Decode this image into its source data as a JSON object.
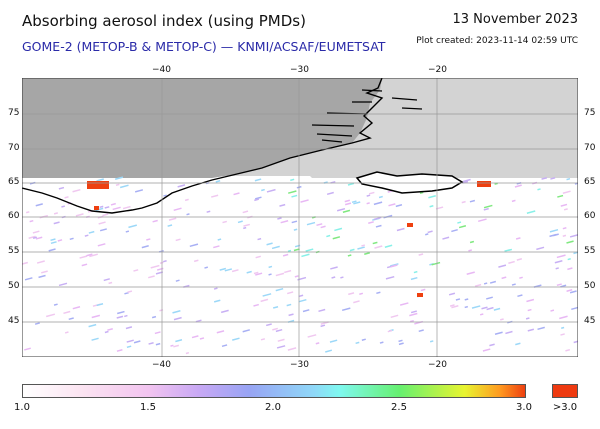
{
  "header": {
    "title": "Absorbing aerosol index (using PMDs)",
    "subtitle": "GOME-2 (METOP-B & METOP-C) — KNMI/ACSAF/EUMETSAT",
    "date": "13 November 2023",
    "created": "Plot created: 2023-11-14 02:59 UTC"
  },
  "map": {
    "lon_ticks": [
      "−40",
      "−30",
      "−20"
    ],
    "lat_ticks": [
      "75",
      "70",
      "65",
      "60",
      "55",
      "50",
      "45"
    ],
    "lon_range": [
      -50,
      -9.5
    ],
    "lat_range": [
      40,
      80
    ],
    "colors": {
      "land_nodata": "#a6a6a6",
      "ocean_nodata": "#d3d3d3",
      "coast": "#000000"
    }
  },
  "colorbar": {
    "labels": [
      "1.0",
      "1.5",
      "2.0",
      "2.5",
      "3.0"
    ],
    "overflow_label": ">3.0",
    "min": 1.0,
    "max": 3.0,
    "overflow_color": "#ee3a10"
  }
}
